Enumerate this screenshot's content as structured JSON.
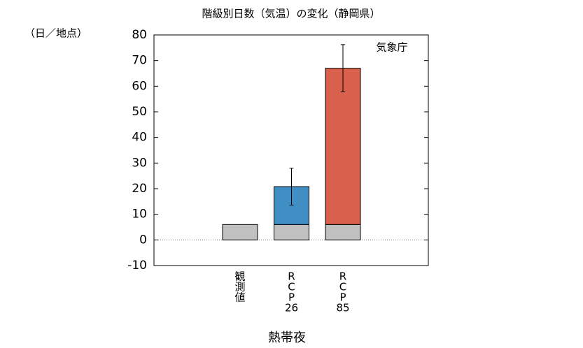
{
  "chart_data": {
    "type": "bar",
    "title": "階級別日数（気温）の変化（静岡県）",
    "y_unit": "（日／地点）",
    "annotation": "気象庁",
    "x_label": "熱帯夜",
    "categories": [
      [
        "観",
        "測",
        "値"
      ],
      [
        "R",
        "C",
        "P",
        "26"
      ],
      [
        "R",
        "C",
        "P",
        "85"
      ]
    ],
    "series": [
      {
        "color": "#c0c0c0",
        "values": [
          6,
          6,
          6
        ]
      },
      {
        "colors": [
          null,
          "#3f8fc4",
          "#d9604c"
        ],
        "values": [
          null,
          14.8,
          61
        ],
        "errors": [
          null,
          7.2,
          9.2
        ]
      }
    ],
    "ylim": [
      -10,
      80
    ],
    "yticks": [
      -10,
      0,
      10,
      20,
      30,
      40,
      50,
      60,
      70,
      80
    ],
    "zero_line": true
  }
}
